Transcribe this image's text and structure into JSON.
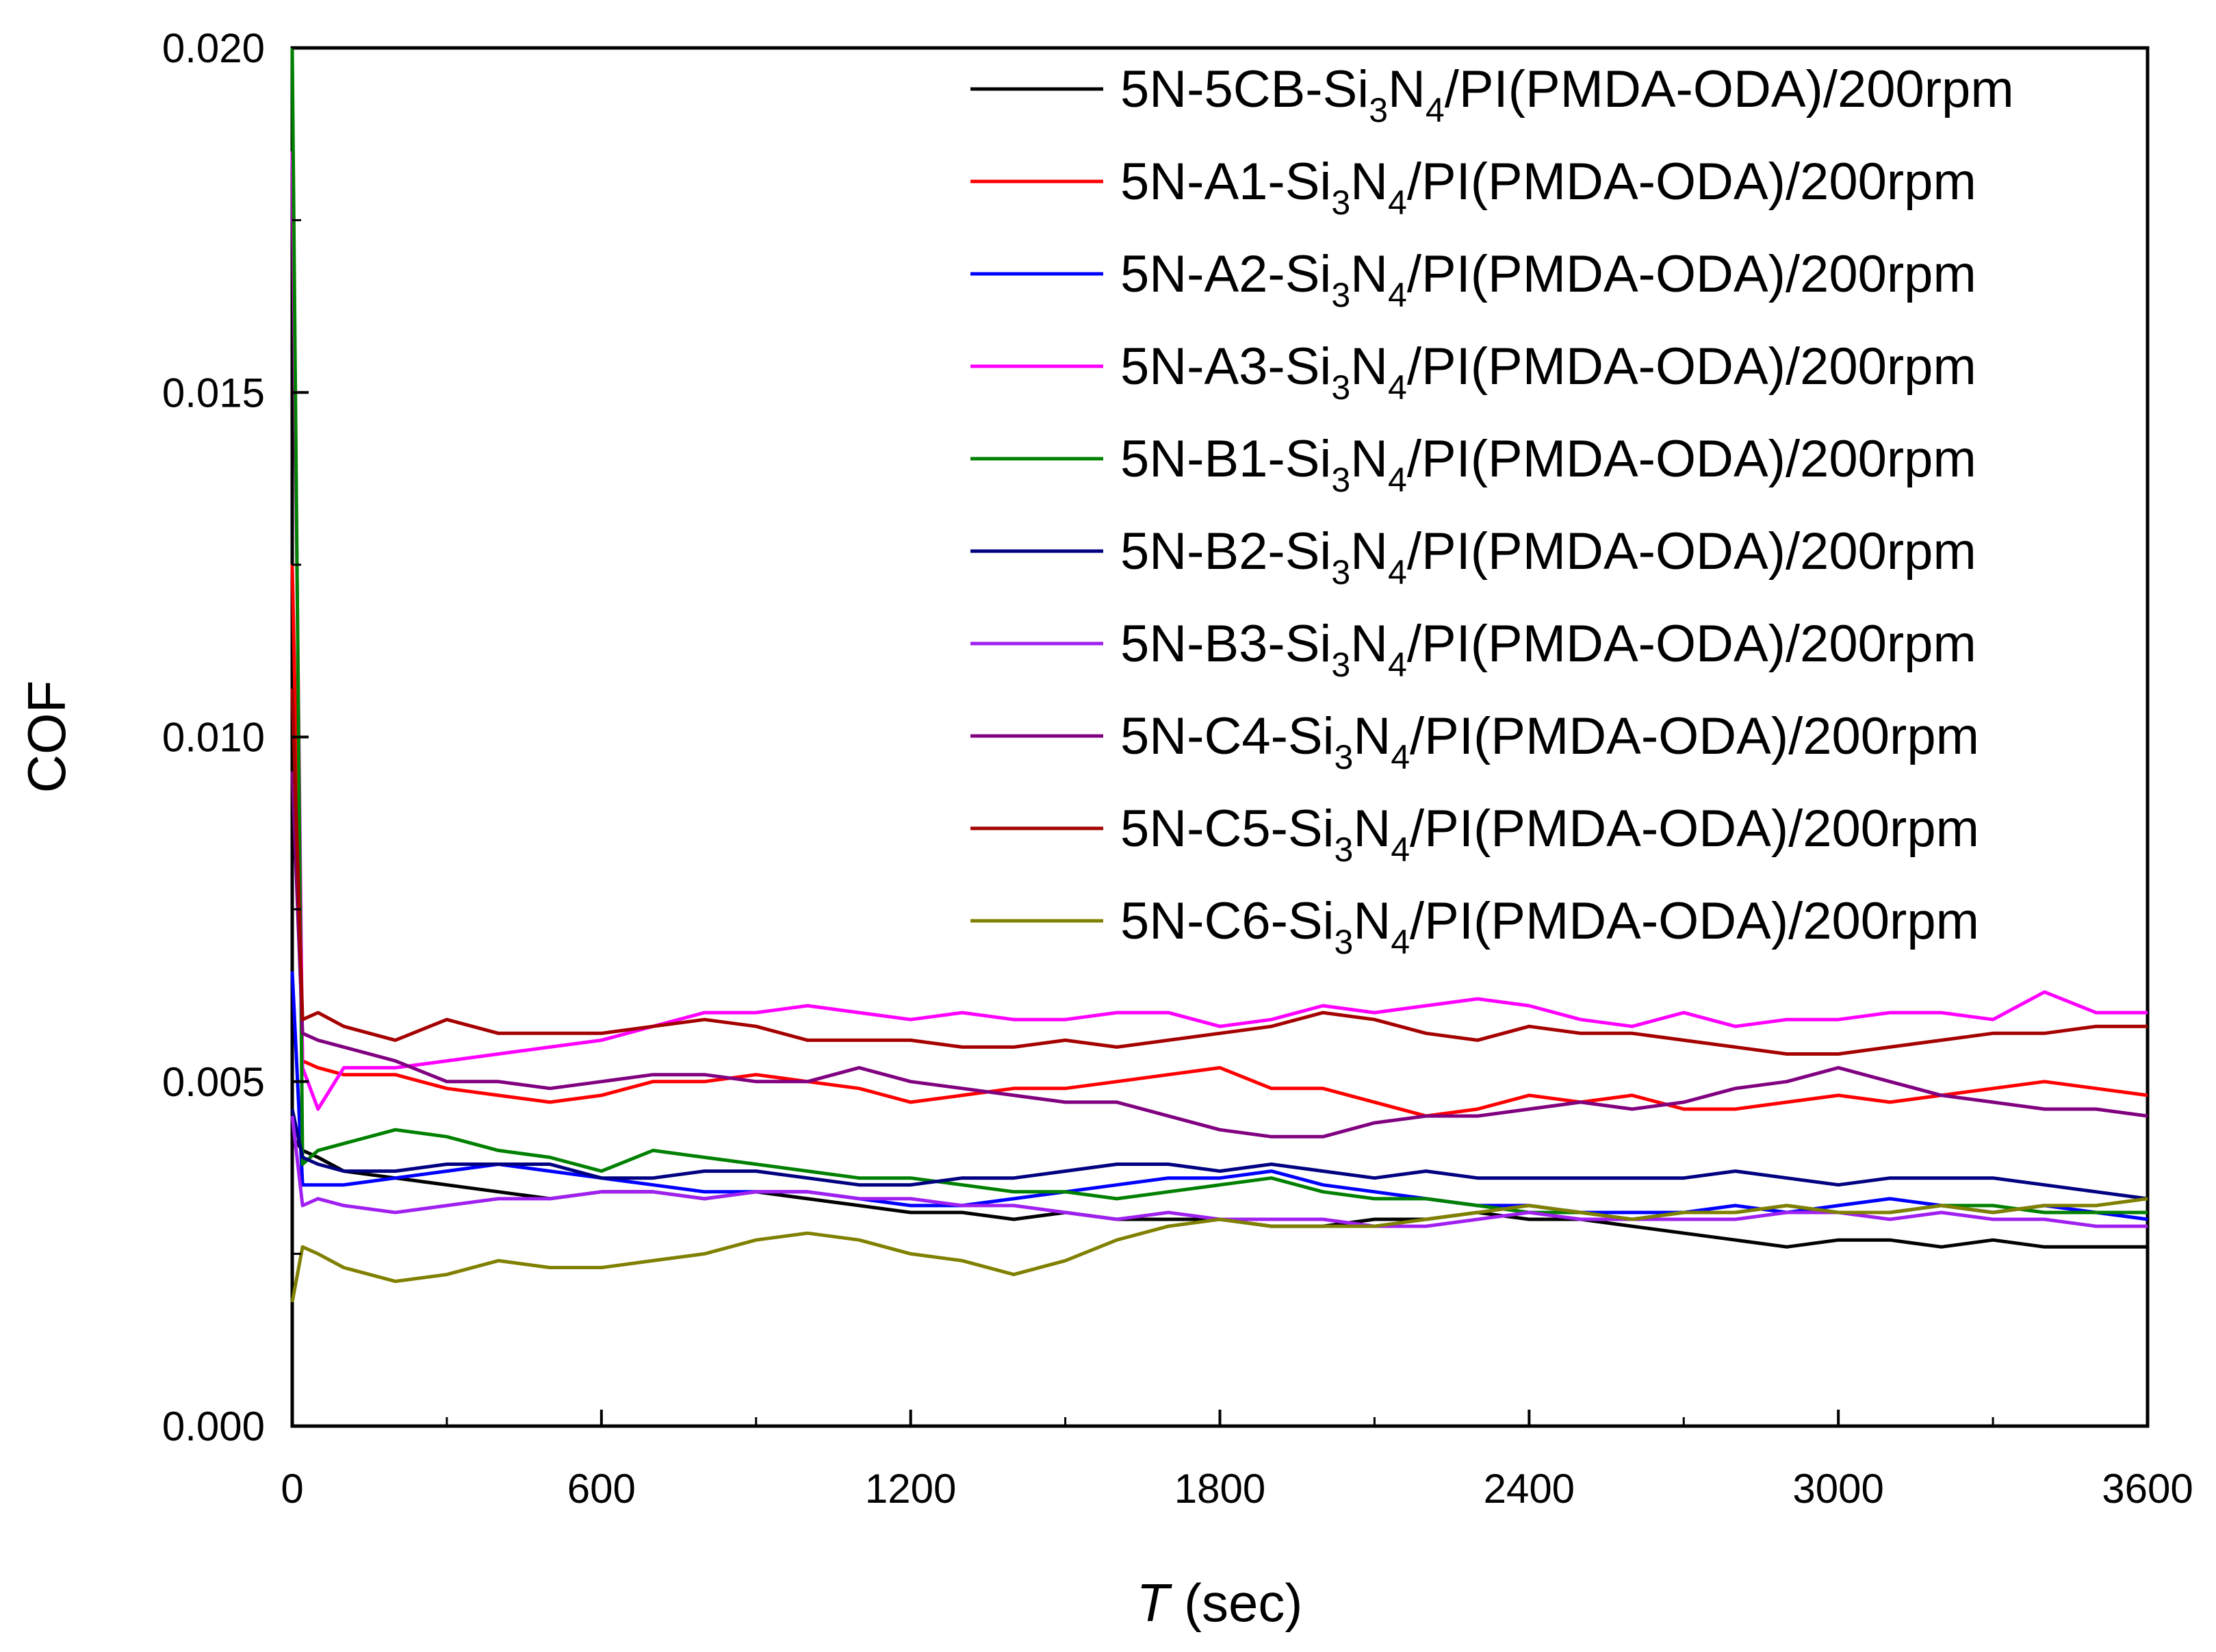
{
  "chart_data": {
    "type": "line",
    "title": "",
    "xlabel": {
      "var": "T",
      "unit": " (sec)"
    },
    "ylabel": "COF",
    "xlim": [
      0,
      3600
    ],
    "ylim": [
      0,
      0.02
    ],
    "xticks": [
      0,
      600,
      1200,
      1800,
      2400,
      3000,
      3600
    ],
    "xtick_labels": [
      "0",
      "600",
      "1200",
      "1800",
      "2400",
      "3000",
      "3600"
    ],
    "yticks": [
      0,
      0.005,
      0.01,
      0.015,
      0.02
    ],
    "ytick_labels": [
      "0.000",
      "0.005",
      "0.010",
      "0.015",
      "0.020"
    ],
    "grid": false,
    "legend_position": "top-right",
    "x": [
      0,
      20,
      50,
      100,
      200,
      300,
      400,
      500,
      600,
      700,
      800,
      900,
      1000,
      1100,
      1200,
      1300,
      1400,
      1500,
      1600,
      1700,
      1800,
      1900,
      2000,
      2100,
      2200,
      2300,
      2400,
      2500,
      2600,
      2700,
      2800,
      2900,
      3000,
      3100,
      3200,
      3300,
      3400,
      3500,
      3600
    ],
    "series": [
      {
        "name": "5N-5CB-Si3N4/PI(PMDA-ODA)/200rpm",
        "label_parts": [
          "5N-5CB-Si",
          "3",
          "N",
          "4",
          "/PI(PMDA-ODA)/200rpm"
        ],
        "color": "#000000",
        "values": [
          0.0042,
          0.004,
          0.0039,
          0.0037,
          0.0036,
          0.0035,
          0.0034,
          0.0033,
          0.0034,
          0.0034,
          0.0033,
          0.0034,
          0.0033,
          0.0032,
          0.0031,
          0.0031,
          0.003,
          0.0031,
          0.003,
          0.003,
          0.003,
          0.0029,
          0.0029,
          0.003,
          0.003,
          0.0031,
          0.003,
          0.003,
          0.0029,
          0.0028,
          0.0027,
          0.0026,
          0.0027,
          0.0027,
          0.0026,
          0.0027,
          0.0026,
          0.0026,
          0.0026
        ]
      },
      {
        "name": "5N-A1-Si3N4/PI(PMDA-ODA)/200rpm",
        "label_parts": [
          "5N-A1-Si",
          "3",
          "N",
          "4",
          "/PI(PMDA-ODA)/200rpm"
        ],
        "color": "#ff0000",
        "values": [
          0.0125,
          0.0053,
          0.0052,
          0.0051,
          0.0051,
          0.0049,
          0.0048,
          0.0047,
          0.0048,
          0.005,
          0.005,
          0.0051,
          0.005,
          0.0049,
          0.0047,
          0.0048,
          0.0049,
          0.0049,
          0.005,
          0.0051,
          0.0052,
          0.0049,
          0.0049,
          0.0047,
          0.0045,
          0.0046,
          0.0048,
          0.0047,
          0.0048,
          0.0046,
          0.0046,
          0.0047,
          0.0048,
          0.0047,
          0.0048,
          0.0049,
          0.005,
          0.0049,
          0.0048
        ]
      },
      {
        "name": "5N-A2-Si3N4/PI(PMDA-ODA)/200rpm",
        "label_parts": [
          "5N-A2-Si",
          "3",
          "N",
          "4",
          "/PI(PMDA-ODA)/200rpm"
        ],
        "color": "#0000ff",
        "values": [
          0.0066,
          0.0035,
          0.0035,
          0.0035,
          0.0036,
          0.0037,
          0.0038,
          0.0037,
          0.0036,
          0.0035,
          0.0034,
          0.0034,
          0.0034,
          0.0033,
          0.0032,
          0.0032,
          0.0033,
          0.0034,
          0.0035,
          0.0036,
          0.0036,
          0.0037,
          0.0035,
          0.0034,
          0.0033,
          0.0032,
          0.0032,
          0.0031,
          0.0031,
          0.0031,
          0.0032,
          0.0031,
          0.0032,
          0.0033,
          0.0032,
          0.0031,
          0.0032,
          0.0031,
          0.003
        ]
      },
      {
        "name": "5N-A3-Si3N4/PI(PMDA-ODA)/200rpm",
        "label_parts": [
          "5N-A3-Si",
          "3",
          "N",
          "4",
          "/PI(PMDA-ODA)/200rpm"
        ],
        "color": "#ff00ff",
        "values": [
          0.0185,
          0.0052,
          0.0046,
          0.0052,
          0.0052,
          0.0053,
          0.0054,
          0.0055,
          0.0056,
          0.0058,
          0.006,
          0.006,
          0.0061,
          0.006,
          0.0059,
          0.006,
          0.0059,
          0.0059,
          0.006,
          0.006,
          0.0058,
          0.0059,
          0.0061,
          0.006,
          0.0061,
          0.0062,
          0.0061,
          0.0059,
          0.0058,
          0.006,
          0.0058,
          0.0059,
          0.0059,
          0.006,
          0.006,
          0.0059,
          0.0063,
          0.006,
          0.006
        ]
      },
      {
        "name": "5N-B1-Si3N4/PI(PMDA-ODA)/200rpm",
        "label_parts": [
          "5N-B1-Si",
          "3",
          "N",
          "4",
          "/PI(PMDA-ODA)/200rpm"
        ],
        "color": "#008000",
        "values": [
          0.02,
          0.0038,
          0.004,
          0.0041,
          0.0043,
          0.0042,
          0.004,
          0.0039,
          0.0037,
          0.004,
          0.0039,
          0.0038,
          0.0037,
          0.0036,
          0.0036,
          0.0035,
          0.0034,
          0.0034,
          0.0033,
          0.0034,
          0.0035,
          0.0036,
          0.0034,
          0.0033,
          0.0033,
          0.0032,
          0.0031,
          0.0031,
          0.003,
          0.0031,
          0.0031,
          0.0032,
          0.0031,
          0.0031,
          0.0032,
          0.0032,
          0.0031,
          0.0031,
          0.0031
        ]
      },
      {
        "name": "5N-B2-Si3N4/PI(PMDA-ODA)/200rpm",
        "label_parts": [
          "5N-B2-Si",
          "3",
          "N",
          "4",
          "/PI(PMDA-ODA)/200rpm"
        ],
        "color": "#000080",
        "values": [
          0.0046,
          0.0039,
          0.0038,
          0.0037,
          0.0037,
          0.0038,
          0.0038,
          0.0038,
          0.0036,
          0.0036,
          0.0037,
          0.0037,
          0.0036,
          0.0035,
          0.0035,
          0.0036,
          0.0036,
          0.0037,
          0.0038,
          0.0038,
          0.0037,
          0.0038,
          0.0037,
          0.0036,
          0.0037,
          0.0036,
          0.0036,
          0.0036,
          0.0036,
          0.0036,
          0.0037,
          0.0036,
          0.0035,
          0.0036,
          0.0036,
          0.0036,
          0.0035,
          0.0034,
          0.0033
        ]
      },
      {
        "name": "5N-B3-Si3N4/PI(PMDA-ODA)/200rpm",
        "label_parts": [
          "5N-B3-Si",
          "3",
          "N",
          "4",
          "/PI(PMDA-ODA)/200rpm"
        ],
        "color": "#a020f0",
        "values": [
          0.0045,
          0.0032,
          0.0033,
          0.0032,
          0.0031,
          0.0032,
          0.0033,
          0.0033,
          0.0034,
          0.0034,
          0.0033,
          0.0034,
          0.0034,
          0.0033,
          0.0033,
          0.0032,
          0.0032,
          0.0031,
          0.003,
          0.0031,
          0.003,
          0.003,
          0.003,
          0.0029,
          0.0029,
          0.003,
          0.0031,
          0.003,
          0.003,
          0.003,
          0.003,
          0.0031,
          0.0031,
          0.003,
          0.0031,
          0.003,
          0.003,
          0.0029,
          0.0029
        ]
      },
      {
        "name": "5N-C4-Si3N4/PI(PMDA-ODA)/200rpm",
        "label_parts": [
          "5N-C4-Si",
          "3",
          "N",
          "4",
          "/PI(PMDA-ODA)/200rpm"
        ],
        "color": "#800080",
        "values": [
          0.0095,
          0.0057,
          0.0056,
          0.0055,
          0.0053,
          0.005,
          0.005,
          0.0049,
          0.005,
          0.0051,
          0.0051,
          0.005,
          0.005,
          0.0052,
          0.005,
          0.0049,
          0.0048,
          0.0047,
          0.0047,
          0.0045,
          0.0043,
          0.0042,
          0.0042,
          0.0044,
          0.0045,
          0.0045,
          0.0046,
          0.0047,
          0.0046,
          0.0047,
          0.0049,
          0.005,
          0.0052,
          0.005,
          0.0048,
          0.0047,
          0.0046,
          0.0046,
          0.0045
        ]
      },
      {
        "name": "5N-C5-Si3N4/PI(PMDA-ODA)/200rpm",
        "label_parts": [
          "5N-C5-Si",
          "3",
          "N",
          "4",
          "/PI(PMDA-ODA)/200rpm"
        ],
        "color": "#a50000",
        "values": [
          0.0107,
          0.0059,
          0.006,
          0.0058,
          0.0056,
          0.0059,
          0.0057,
          0.0057,
          0.0057,
          0.0058,
          0.0059,
          0.0058,
          0.0056,
          0.0056,
          0.0056,
          0.0055,
          0.0055,
          0.0056,
          0.0055,
          0.0056,
          0.0057,
          0.0058,
          0.006,
          0.0059,
          0.0057,
          0.0056,
          0.0058,
          0.0057,
          0.0057,
          0.0056,
          0.0055,
          0.0054,
          0.0054,
          0.0055,
          0.0056,
          0.0057,
          0.0057,
          0.0058,
          0.0058
        ]
      },
      {
        "name": "5N-C6-Si3N4/PI(PMDA-ODA)/200rpm",
        "label_parts": [
          "5N-C6-Si",
          "3",
          "N",
          "4",
          "/PI(PMDA-ODA)/200rpm"
        ],
        "color": "#808000",
        "values": [
          0.0018,
          0.0026,
          0.0025,
          0.0023,
          0.0021,
          0.0022,
          0.0024,
          0.0023,
          0.0023,
          0.0024,
          0.0025,
          0.0027,
          0.0028,
          0.0027,
          0.0025,
          0.0024,
          0.0022,
          0.0024,
          0.0027,
          0.0029,
          0.003,
          0.0029,
          0.0029,
          0.0029,
          0.003,
          0.0031,
          0.0032,
          0.0031,
          0.003,
          0.0031,
          0.0031,
          0.0032,
          0.0031,
          0.0031,
          0.0032,
          0.0031,
          0.0032,
          0.0032,
          0.0033
        ]
      }
    ]
  }
}
